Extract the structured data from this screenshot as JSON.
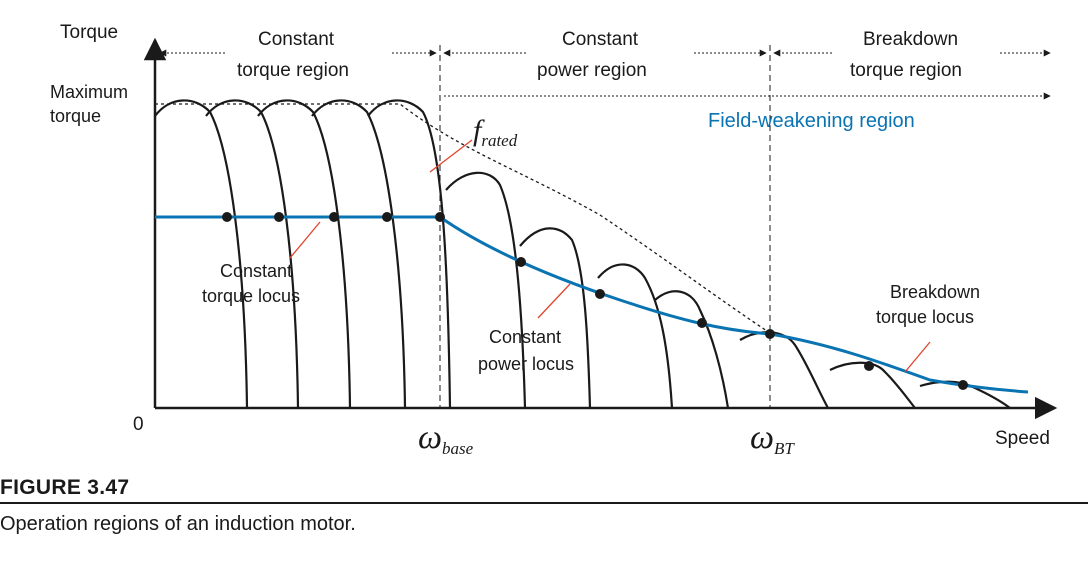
{
  "axes": {
    "y_label": "Torque",
    "x_label": "Speed",
    "origin_label": "0",
    "max_torque_line1": "Maximum",
    "max_torque_line2": "torque",
    "omega_symbol": "ω",
    "omega_base_sub": "base",
    "omega_bt_sub": "BT"
  },
  "regions": {
    "constant_torque_line1": "Constant",
    "constant_torque_line2": "torque region",
    "constant_power_line1": "Constant",
    "constant_power_line2": "power region",
    "breakdown_line1": "Breakdown",
    "breakdown_line2": "torque region",
    "field_weakening": "Field-weakening region"
  },
  "annotations": {
    "f_letter": "f",
    "f_sub": "rated",
    "constant_torque_locus_line1": "Constant",
    "constant_torque_locus_line2": "torque locus",
    "constant_power_locus_line1": "Constant",
    "constant_power_locus_line2": "power locus",
    "breakdown_locus_line1": "Breakdown",
    "breakdown_locus_line2": "torque locus"
  },
  "figure": {
    "title": "FIGURE 3.47",
    "caption": "Operation regions of an induction motor."
  },
  "colors": {
    "locus": "#0a74b3",
    "ink": "#1a1a1a",
    "annotation_line": "#e0452c"
  }
}
